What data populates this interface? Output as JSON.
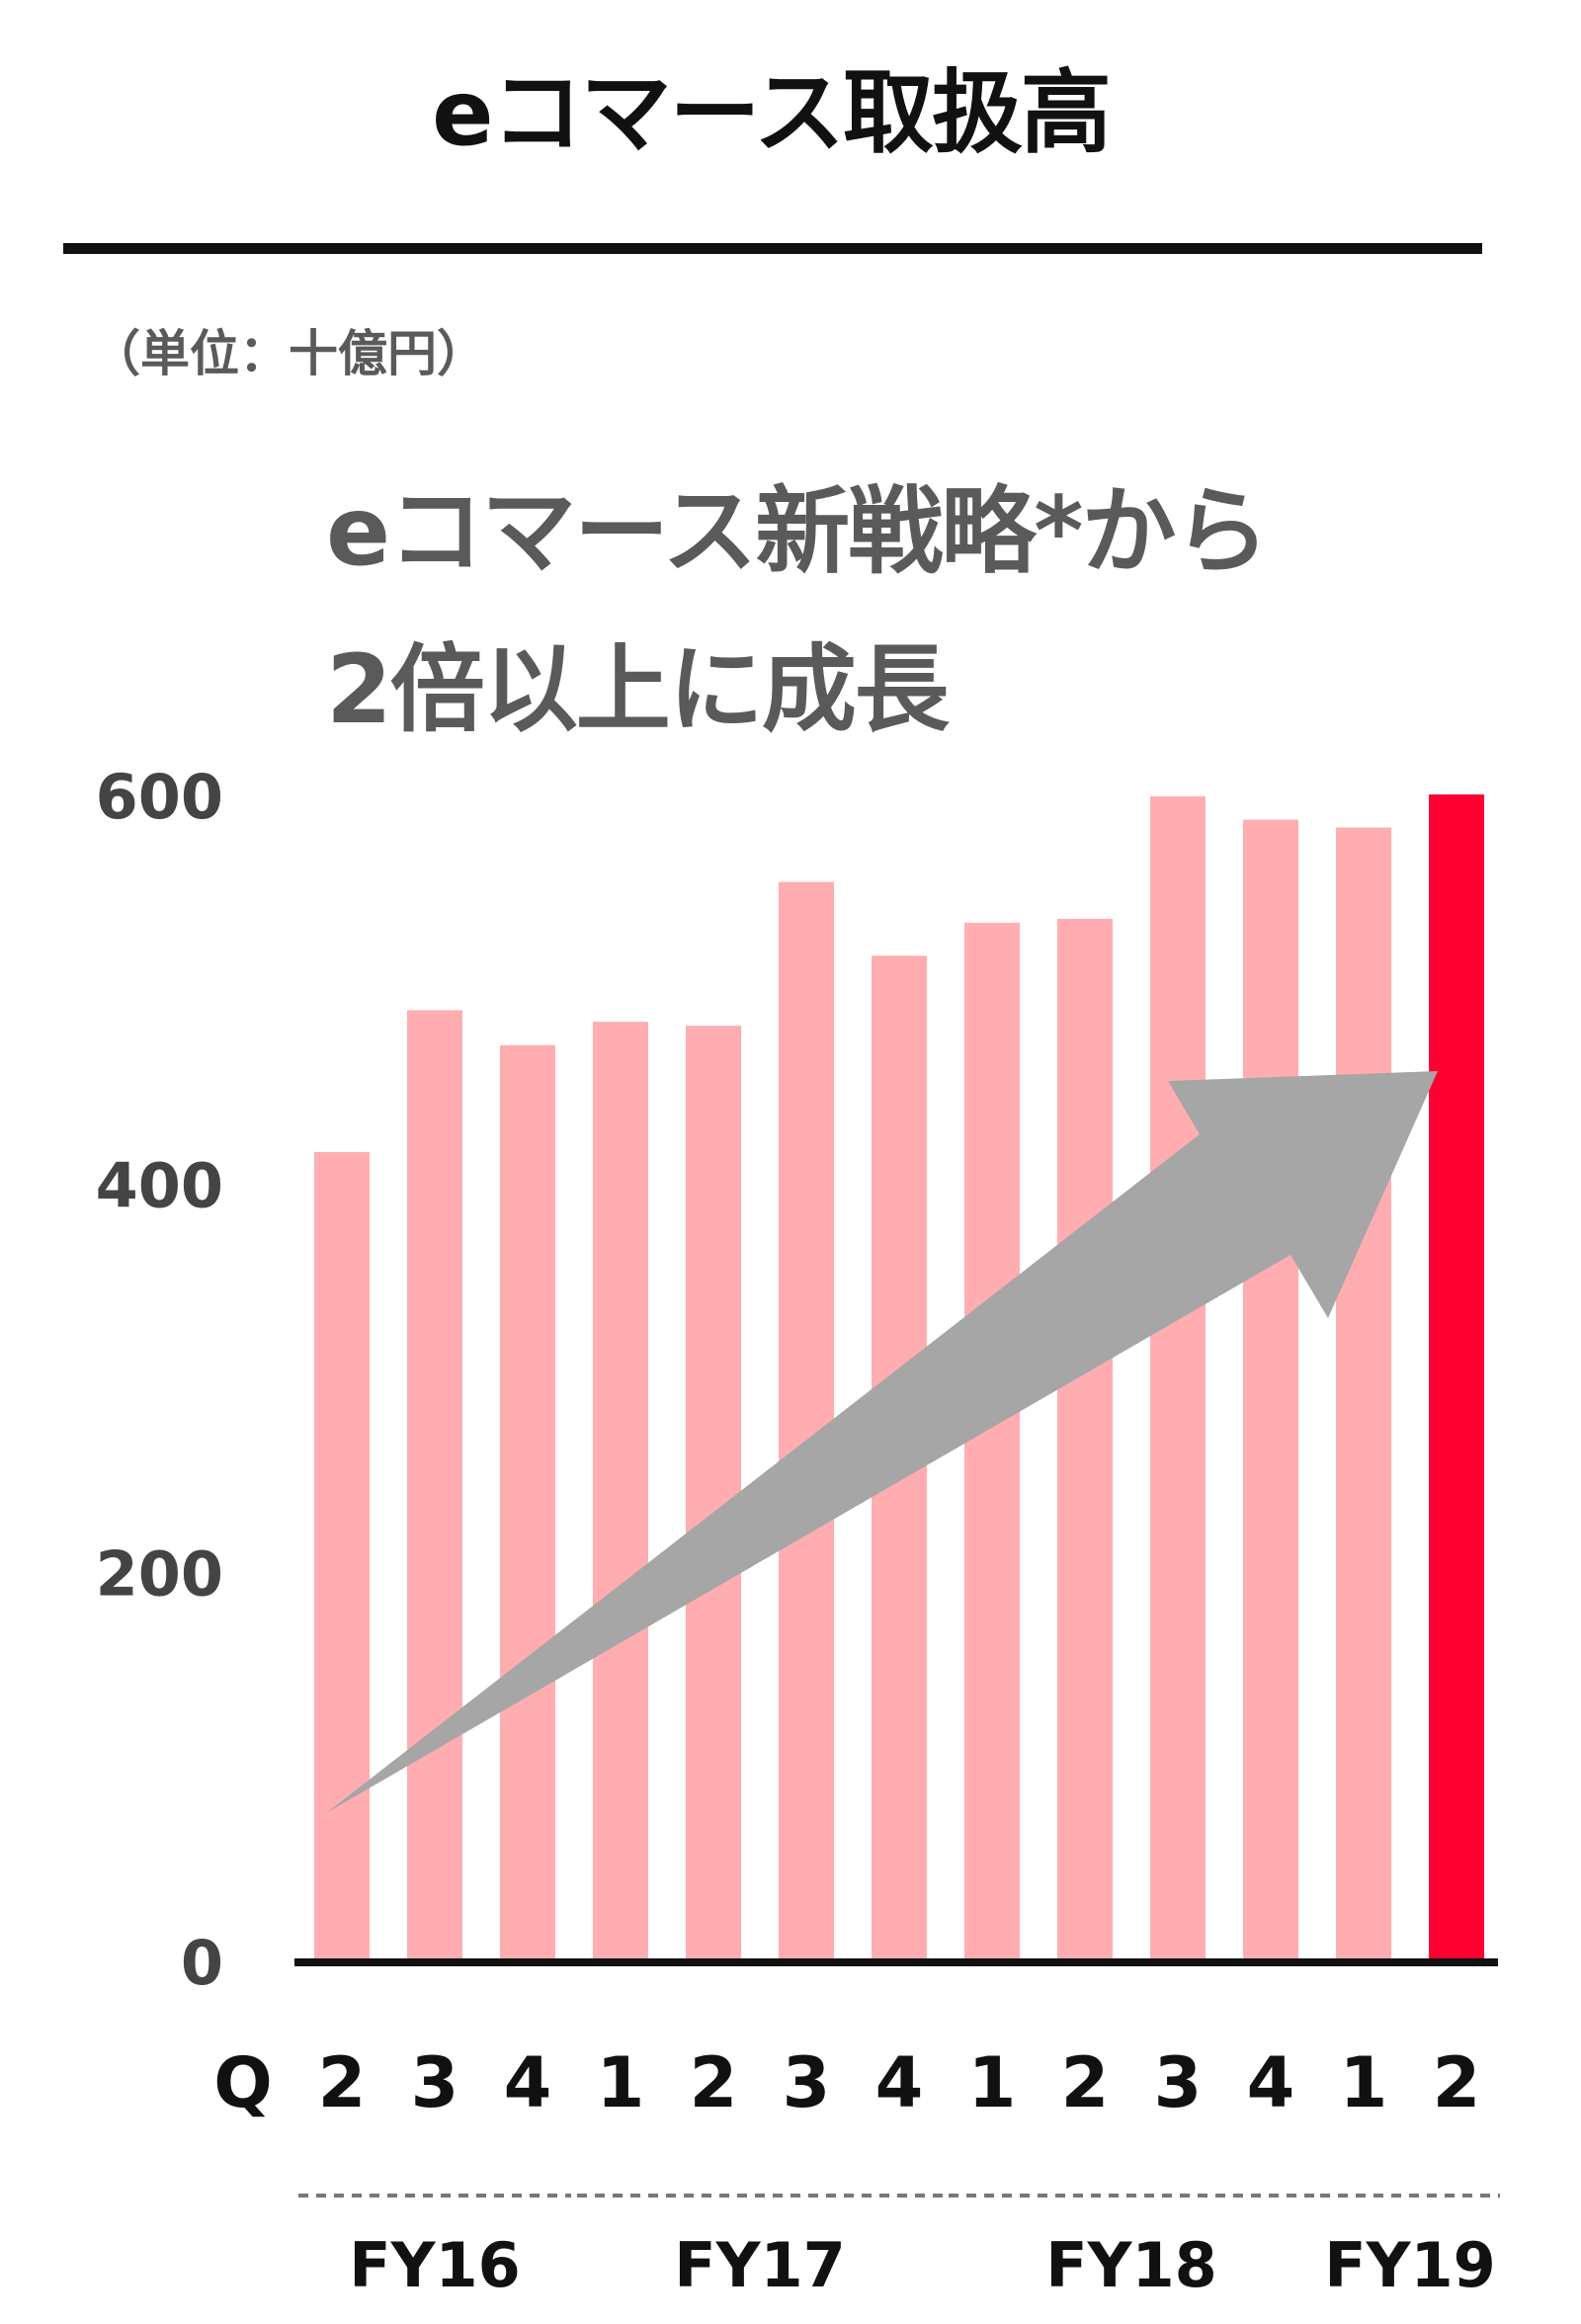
{
  "chart_data": {
    "type": "bar",
    "title": "eコマース取扱高",
    "unit_label": "（単位：十億円）",
    "annotation": [
      "eコマース新戦略*から",
      "2倍以上に成長"
    ],
    "x_prefix": "Q",
    "categories": [
      "2",
      "3",
      "4",
      "1",
      "2",
      "3",
      "4",
      "1",
      "2",
      "3",
      "4",
      "1",
      "2"
    ],
    "values": [
      417,
      490,
      472,
      484,
      482,
      556,
      518,
      535,
      537,
      600,
      588,
      584,
      601
    ],
    "highlight_index": 12,
    "fiscal_years": [
      {
        "label": "FY16",
        "start": 0,
        "end": 2
      },
      {
        "label": "FY17",
        "start": 3,
        "end": 6
      },
      {
        "label": "FY18",
        "start": 7,
        "end": 10
      },
      {
        "label": "FY19",
        "start": 11,
        "end": 12
      }
    ],
    "yticks": [
      0,
      200,
      400,
      600
    ],
    "ylim": [
      0,
      600
    ],
    "grid": false,
    "colors": {
      "bar": "#ffadb1",
      "highlight": "#ff0033",
      "arrow": "#a6a6a6",
      "axis": "#111111"
    }
  }
}
